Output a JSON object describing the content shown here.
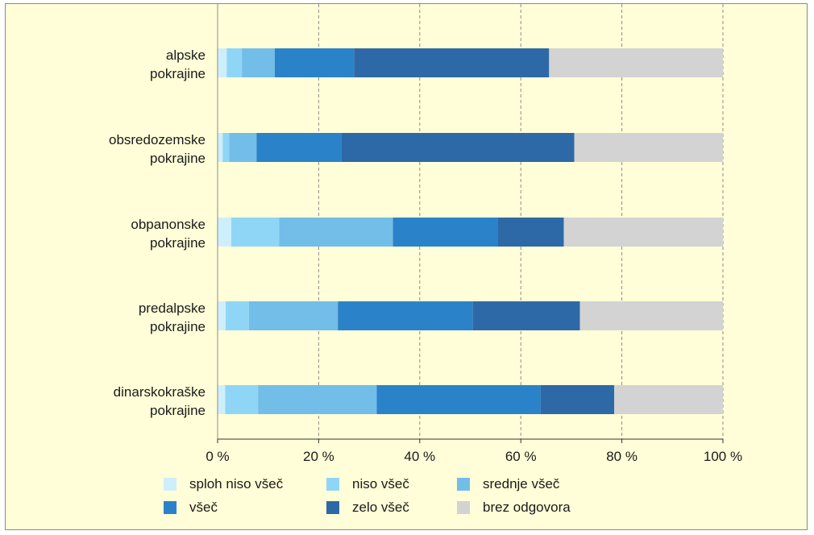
{
  "chart_data": {
    "type": "bar",
    "orientation": "horizontal",
    "stacked": true,
    "title": "",
    "xlabel": "",
    "ylabel": "",
    "xlim": [
      0,
      100
    ],
    "grid": true,
    "legend_position": "bottom",
    "categories": [
      [
        "alpske",
        "pokrajine"
      ],
      [
        "obsredozemske",
        "pokrajine"
      ],
      [
        "obpanonske",
        "pokrajine"
      ],
      [
        "predalpske",
        "pokrajine"
      ],
      [
        "dinarskokraške",
        "pokrajine"
      ]
    ],
    "x_ticks": [
      "0 %",
      "20 %",
      "40 %",
      "60 %",
      "80 %",
      "100 %"
    ],
    "x_tick_values": [
      0,
      20,
      40,
      60,
      80,
      100
    ],
    "series": [
      {
        "name": "sploh niso všeč",
        "color": "#cfeefb",
        "values": [
          1.8,
          1.0,
          2.7,
          1.6,
          1.5
        ]
      },
      {
        "name": "niso všeč",
        "color": "#8fd6f6",
        "values": [
          3.0,
          1.3,
          9.5,
          4.6,
          6.5
        ]
      },
      {
        "name": "srednje všeč",
        "color": "#73bde9",
        "values": [
          6.5,
          5.4,
          22.5,
          17.6,
          23.5
        ]
      },
      {
        "name": "všeč",
        "color": "#2a83c9",
        "values": [
          15.7,
          16.8,
          20.8,
          26.7,
          32.4
        ]
      },
      {
        "name": "zelo všeč",
        "color": "#2e69a7",
        "values": [
          38.6,
          46.1,
          13.0,
          21.2,
          14.6
        ]
      },
      {
        "name": "brez odgovora",
        "color": "#d3d3d3",
        "values": [
          34.4,
          29.4,
          31.5,
          28.3,
          21.5
        ]
      }
    ]
  }
}
